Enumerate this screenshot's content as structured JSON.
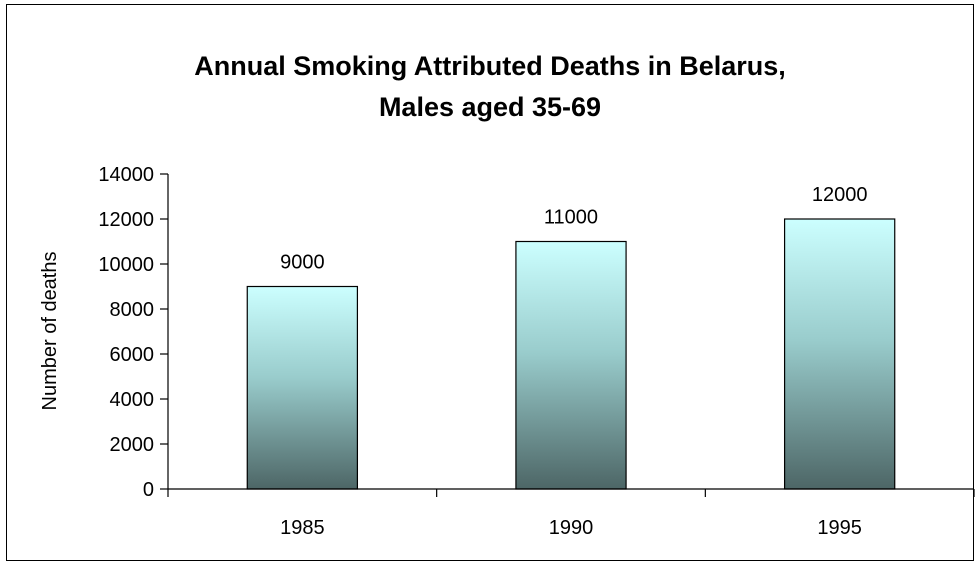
{
  "chart_data": {
    "type": "bar",
    "title_lines": [
      "Annual Smoking Attributed Deaths in Belarus,",
      "Males aged 35-69"
    ],
    "categories": [
      "1985",
      "1990",
      "1995"
    ],
    "values": [
      9000,
      11000,
      12000
    ],
    "data_labels": [
      "9000",
      "11000",
      "12000"
    ],
    "xlabel": "",
    "ylabel": "Number of deaths",
    "ylim": [
      0,
      14000
    ],
    "yticks": [
      "0",
      "2000",
      "4000",
      "6000",
      "8000",
      "10000",
      "12000",
      "14000"
    ],
    "grid": false,
    "legend": "none",
    "colors": {
      "bar_top": "#ccffff",
      "bar_mid": "#99cccc",
      "bar_bottom": "#4d6666",
      "bar_stroke": "#000000",
      "axis": "#000000"
    }
  }
}
